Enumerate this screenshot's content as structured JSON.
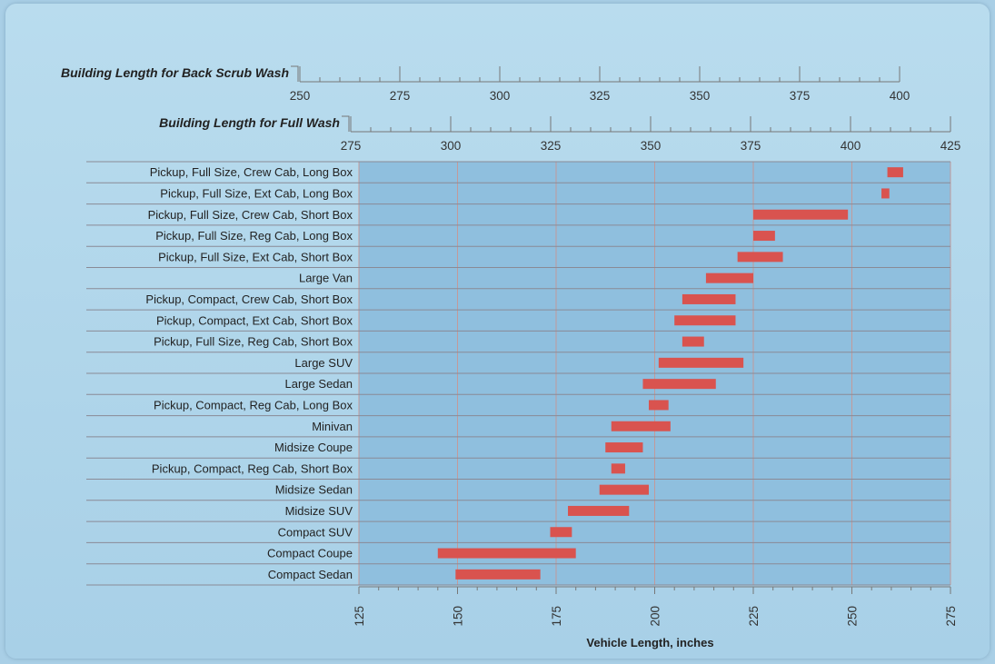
{
  "chart_data": {
    "type": "bar",
    "orientation": "horizontal-range",
    "xlabel": "Vehicle Length, inches",
    "xlim": [
      125,
      275
    ],
    "xticks": [
      "125",
      "150",
      "175",
      "200",
      "225",
      "250",
      "275"
    ],
    "grid": true,
    "bar_color": "#d9534f",
    "plot_color": "#8fbfde",
    "categories": [
      "Pickup, Full Size, Crew Cab, Long Box",
      "Pickup, Full Size, Ext Cab, Long Box",
      "Pickup, Full Size, Crew Cab, Short Box",
      "Pickup, Full Size, Reg Cab, Long Box",
      "Pickup, Full Size, Ext Cab, Short Box",
      "Large Van",
      "Pickup, Compact, Crew Cab, Short Box",
      "Pickup, Compact, Ext Cab, Short Box",
      "Pickup, Full Size, Reg Cab, Short Box",
      "Large SUV",
      "Large Sedan",
      "Pickup, Compact, Reg Cab, Long Box",
      "Minivan",
      "Midsize Coupe",
      "Pickup, Compact, Reg Cab, Short Box",
      "Midsize Sedan",
      "Midsize SUV",
      "Compact SUV",
      "Compact Coupe",
      "Compact Sedan"
    ],
    "ranges": [
      [
        259,
        263
      ],
      [
        257.5,
        259.5
      ],
      [
        225,
        249
      ],
      [
        225,
        230.5
      ],
      [
        221,
        232.5
      ],
      [
        213,
        225
      ],
      [
        207,
        220.5
      ],
      [
        205,
        220.5
      ],
      [
        207,
        212.5
      ],
      [
        201,
        222.5
      ],
      [
        197,
        215.5
      ],
      [
        198.5,
        203.5
      ],
      [
        189,
        204
      ],
      [
        187.5,
        197
      ],
      [
        189,
        192.5
      ],
      [
        186,
        198.5
      ],
      [
        178,
        193.5
      ],
      [
        173.5,
        179
      ],
      [
        145,
        180
      ],
      [
        149.5,
        171
      ]
    ],
    "secondary_axes": [
      {
        "title": "Building Length for Back Scrub Wash",
        "ticks": [
          "250",
          "275",
          "300",
          "325",
          "350",
          "375",
          "400"
        ]
      },
      {
        "title": "Building Length for Full Wash",
        "ticks": [
          "275",
          "300",
          "325",
          "350",
          "375",
          "400",
          "425"
        ]
      }
    ]
  }
}
